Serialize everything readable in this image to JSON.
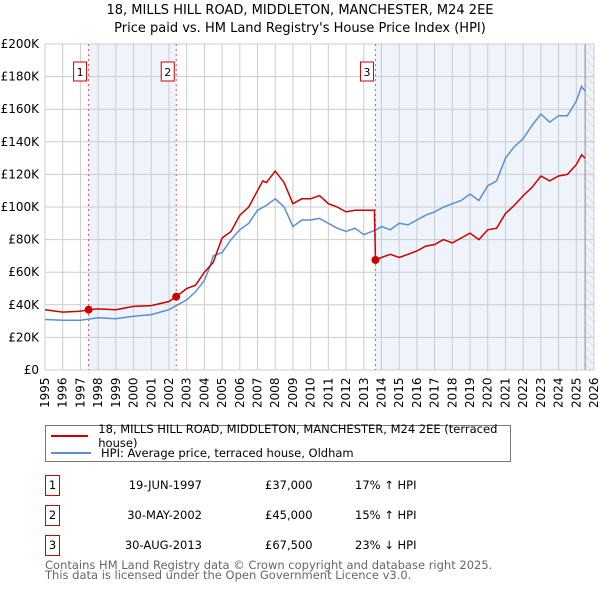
{
  "title": "18, MILLS HILL ROAD, MIDDLETON, MANCHESTER, M24 2EE",
  "subtitle": "Price paid vs. HM Land Registry's House Price Index (HPI)",
  "legend": {
    "property": "18, MILLS HILL ROAD, MIDDLETON, MANCHESTER, M24 2EE (terraced house)",
    "hpi": "HPI: Average price, terraced house, Oldham"
  },
  "sales": [
    {
      "num": "1",
      "date": "19-JUN-1997",
      "price": "£37,000",
      "hpi": "17% ↑ HPI"
    },
    {
      "num": "2",
      "date": "30-MAY-2002",
      "price": "£45,000",
      "hpi": "15% ↑ HPI"
    },
    {
      "num": "3",
      "date": "30-AUG-2013",
      "price": "£67,500",
      "hpi": "23% ↓ HPI"
    }
  ],
  "footer": {
    "line1": "Contains HM Land Registry data © Crown copyright and database right 2025.",
    "line2": "This data is licensed under the Open Government Licence v3.0."
  },
  "chart_data": {
    "type": "line",
    "xlim": [
      1995,
      2026
    ],
    "ylim": [
      0,
      200000
    ],
    "yticks": [
      0,
      20000,
      40000,
      60000,
      80000,
      100000,
      120000,
      140000,
      160000,
      180000,
      200000
    ],
    "ytick_labels": [
      "£0",
      "£20K",
      "£40K",
      "£60K",
      "£80K",
      "£100K",
      "£120K",
      "£140K",
      "£160K",
      "£180K",
      "£200K"
    ],
    "xticks": [
      1995,
      1996,
      1997,
      1998,
      1999,
      2000,
      2001,
      2002,
      2003,
      2004,
      2005,
      2006,
      2007,
      2008,
      2009,
      2010,
      2011,
      2012,
      2013,
      2014,
      2015,
      2016,
      2017,
      2018,
      2019,
      2020,
      2021,
      2022,
      2023,
      2024,
      2025,
      2026
    ],
    "colors": {
      "property": "#cc0000",
      "hpi": "#5b8fd0",
      "shade": "#eef3fc"
    },
    "sale_points": [
      {
        "x": 1997.46,
        "y": 37000,
        "label": "1"
      },
      {
        "x": 2002.41,
        "y": 45000,
        "label": "2"
      },
      {
        "x": 2013.66,
        "y": 67500,
        "label": "3"
      }
    ],
    "hatch_from": 2025.5,
    "series": [
      {
        "name": "property",
        "x": [
          1995,
          1996,
          1997,
          1997.46,
          1998,
          1999,
          2000,
          2001,
          2002,
          2002.41,
          2003,
          2003.5,
          2004,
          2004.5,
          2005,
          2005.5,
          2006,
          2006.5,
          2007,
          2007.3,
          2007.5,
          2008,
          2008.5,
          2009,
          2009.5,
          2010,
          2010.5,
          2011,
          2011.5,
          2012,
          2012.5,
          2013,
          2013.6,
          2013.66,
          2014,
          2014.5,
          2015,
          2015.5,
          2016,
          2016.5,
          2017,
          2017.5,
          2018,
          2018.5,
          2019,
          2019.5,
          2020,
          2020.5,
          2021,
          2021.5,
          2022,
          2022.5,
          2023,
          2023.5,
          2024,
          2024.5,
          2025,
          2025.3,
          2025.5
        ],
        "y": [
          37000,
          35500,
          36000,
          37000,
          37500,
          37000,
          39000,
          39500,
          42000,
          45000,
          50000,
          52000,
          60000,
          66000,
          81000,
          85000,
          95000,
          100000,
          110000,
          116000,
          115000,
          122000,
          115000,
          102000,
          105000,
          105000,
          107000,
          102000,
          100000,
          97000,
          98000,
          98000,
          98000,
          67500,
          69000,
          71000,
          69000,
          71000,
          73000,
          76000,
          77000,
          80000,
          78000,
          81000,
          84000,
          80000,
          86000,
          87000,
          96000,
          101000,
          107000,
          112000,
          119000,
          116000,
          119000,
          120000,
          126000,
          132000,
          130000
        ]
      },
      {
        "name": "hpi",
        "x": [
          1995,
          1996,
          1997,
          1998,
          1999,
          2000,
          2001,
          2002,
          2002.5,
          2003,
          2003.5,
          2004,
          2004.3,
          2004.5,
          2005,
          2005.5,
          2006,
          2006.5,
          2007,
          2007.5,
          2008,
          2008.5,
          2009,
          2009.5,
          2010,
          2010.5,
          2011,
          2011.5,
          2012,
          2012.5,
          2013,
          2013.7,
          2014,
          2014.5,
          2015,
          2015.5,
          2016,
          2016.5,
          2017,
          2017.5,
          2018,
          2018.5,
          2019,
          2019.5,
          2020,
          2020.5,
          2021,
          2021.5,
          2022,
          2022.5,
          2023,
          2023.5,
          2024,
          2024.5,
          2025,
          2025.3,
          2025.5
        ],
        "y": [
          31000,
          30500,
          30500,
          32000,
          31500,
          33000,
          34000,
          37000,
          40000,
          43000,
          48000,
          55000,
          63000,
          70000,
          72000,
          80000,
          86000,
          90000,
          98000,
          101000,
          105000,
          100000,
          88000,
          92000,
          92000,
          93000,
          90000,
          87000,
          85000,
          87000,
          83000,
          86000,
          88000,
          86000,
          90000,
          89000,
          92000,
          95000,
          97000,
          100000,
          102000,
          104000,
          108000,
          104000,
          113000,
          116000,
          130000,
          137000,
          142000,
          150000,
          157000,
          152000,
          156000,
          156000,
          165000,
          174000,
          171000
        ]
      }
    ]
  }
}
